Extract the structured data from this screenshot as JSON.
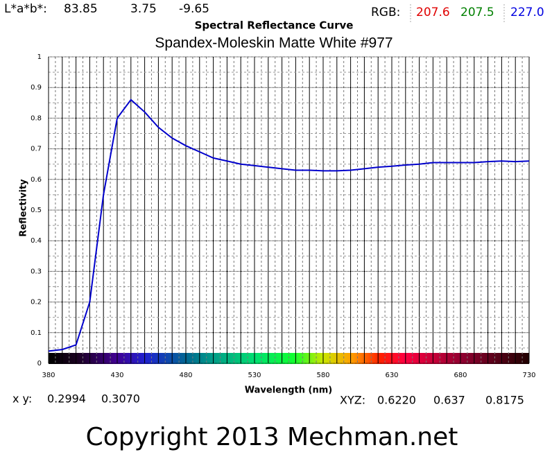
{
  "chart_data": {
    "type": "line",
    "title": "Spectral Reflectance Curve",
    "subtitle": "Spandex-Moleskin Matte White #977",
    "x_label": "Wavelength (nm)",
    "y_label": "Reflectivity",
    "x": [
      380,
      390,
      400,
      410,
      420,
      430,
      440,
      450,
      460,
      470,
      480,
      490,
      500,
      510,
      520,
      530,
      540,
      550,
      560,
      570,
      580,
      590,
      600,
      610,
      620,
      630,
      640,
      650,
      660,
      670,
      680,
      690,
      700,
      710,
      720,
      730
    ],
    "values": [
      0.04,
      0.045,
      0.06,
      0.2,
      0.55,
      0.8,
      0.86,
      0.82,
      0.77,
      0.735,
      0.71,
      0.69,
      0.67,
      0.66,
      0.65,
      0.645,
      0.64,
      0.635,
      0.63,
      0.63,
      0.628,
      0.628,
      0.63,
      0.635,
      0.64,
      0.643,
      0.647,
      0.65,
      0.655,
      0.655,
      0.655,
      0.655,
      0.658,
      0.66,
      0.658,
      0.66
    ],
    "color": "#0000cc",
    "xlim": [
      380,
      730
    ],
    "xticks": [
      380,
      430,
      480,
      530,
      580,
      630,
      680,
      730
    ],
    "xgrid": [
      380,
      390,
      400,
      410,
      420,
      430,
      440,
      450,
      460,
      470,
      480,
      490,
      500,
      510,
      520,
      530,
      540,
      550,
      560,
      570,
      580,
      590,
      600,
      610,
      620,
      630,
      640,
      650,
      660,
      670,
      680,
      690,
      700,
      710,
      720,
      730
    ],
    "ylim": [
      0,
      1
    ],
    "yticks": [
      0,
      0.1,
      0.2,
      0.3,
      0.4,
      0.5,
      0.6,
      0.7,
      0.8,
      0.9,
      1
    ],
    "grid": true
  },
  "readouts": {
    "lab_label": "L*a*b*:",
    "lab": [
      "83.85",
      "3.75",
      "-9.65"
    ],
    "rgb_label": "RGB:",
    "rgb": [
      "207.6",
      "207.5",
      "227.0"
    ],
    "xy_label": "x y:",
    "xy": [
      "0.2994",
      "0.3070"
    ],
    "xyz_label": "XYZ:",
    "xyz": [
      "0.6220",
      "0.637",
      "0.8175"
    ],
    "copyright": "Copyright 2013 Mechman.net"
  }
}
